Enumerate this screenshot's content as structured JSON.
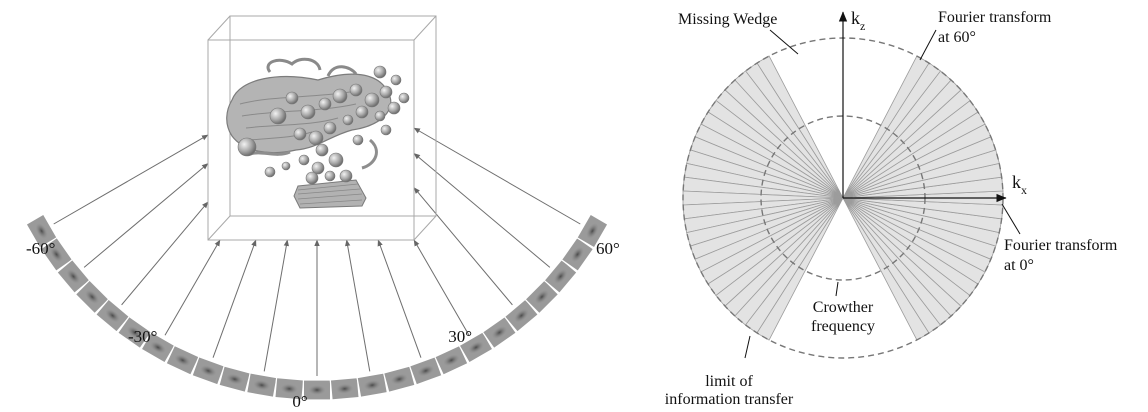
{
  "left_panel": {
    "angle_labels": [
      "-60°",
      "-30°",
      "0°",
      "30°",
      "60°"
    ],
    "tilt_range_deg": [
      -60,
      60
    ],
    "tilt_step_deg": 5,
    "colors": {
      "projection_strip": "#9a9a9a",
      "ray": "#6e6e6e",
      "cube_edge": "#a8a8a8",
      "volume": "#b8b8b8"
    }
  },
  "right_panel": {
    "axis_kx": "k",
    "axis_kx_sub": "x",
    "axis_kz": "k",
    "axis_kz_sub": "z",
    "label_missing_wedge": "Missing Wedge",
    "label_ft60_line1": "Fourier transform",
    "label_ft60_line2": "at 60°",
    "label_ft0_line1": "Fourier transform",
    "label_ft0_line2": "at 0°",
    "label_crowther_line1": "Crowther",
    "label_crowther_line2": "frequency",
    "label_limit_line1": "limit of",
    "label_limit_line2": "information transfer",
    "colors": {
      "slice_fill": "#e3e3e3",
      "slice_stroke": "#9c9c9c",
      "dashed_circle": "#777777",
      "axis": "#111111"
    }
  }
}
